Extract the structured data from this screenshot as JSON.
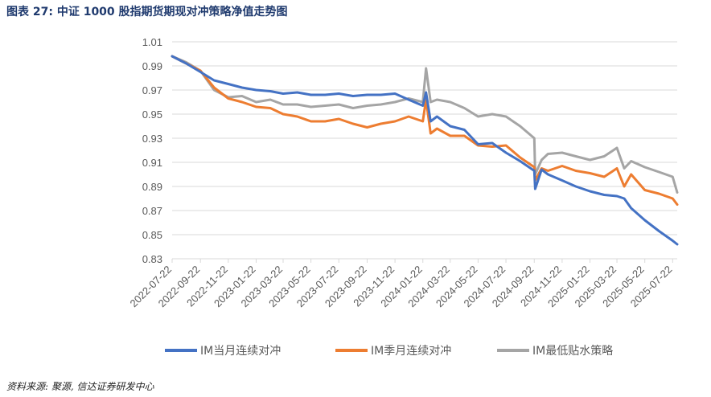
{
  "figure_title": "图表 27:  中证 1000 股指期货期现对冲策略净值走势图",
  "source_note": "资料来源:  聚源,  信达证券研发中心",
  "colors": {
    "IM当月连续对冲": "#4472c4",
    "IM季月连续对冲": "#ed7d31",
    "IM最低贴水策略": "#a5a5a5",
    "grid": "#d9d9d9",
    "title": "#1f3a6e"
  },
  "chart_data": {
    "type": "line",
    "title": "",
    "xlabel": "",
    "ylabel": "",
    "ylim": [
      0.83,
      1.01
    ],
    "yticks": [
      1.01,
      0.99,
      0.97,
      0.95,
      0.93,
      0.91,
      0.89,
      0.87,
      0.85,
      0.83
    ],
    "xticks": [
      "2022-07-22",
      "2022-09-22",
      "2022-11-22",
      "2023-01-22",
      "2023-03-22",
      "2023-05-22",
      "2023-07-22",
      "2023-09-22",
      "2023-11-22",
      "2024-01-22",
      "2024-03-22",
      "2024-05-22",
      "2024-07-22",
      "2024-09-22",
      "2024-11-22",
      "2025-01-22",
      "2025-03-22",
      "2025-05-22",
      "2025-07-22"
    ],
    "grid": "horizontal",
    "legend_position": "bottom",
    "x": [
      "2022-07-22",
      "2022-08-22",
      "2022-09-22",
      "2022-10-22",
      "2022-11-22",
      "2022-12-22",
      "2023-01-22",
      "2023-02-22",
      "2023-03-22",
      "2023-04-22",
      "2023-05-22",
      "2023-06-22",
      "2023-07-22",
      "2023-08-22",
      "2023-09-22",
      "2023-10-22",
      "2023-11-22",
      "2023-12-22",
      "2024-01-22",
      "2024-01-29",
      "2024-02-08",
      "2024-02-22",
      "2024-03-22",
      "2024-04-22",
      "2024-05-22",
      "2024-06-22",
      "2024-07-22",
      "2024-08-22",
      "2024-09-22",
      "2024-09-24",
      "2024-10-08",
      "2024-10-22",
      "2024-11-22",
      "2024-12-22",
      "2025-01-22",
      "2025-02-22",
      "2025-03-22",
      "2025-04-07",
      "2025-04-22",
      "2025-05-22",
      "2025-06-22",
      "2025-07-22",
      "2025-08-01"
    ],
    "series": [
      {
        "name": "IM当月连续对冲",
        "values": [
          0.998,
          0.992,
          0.985,
          0.978,
          0.975,
          0.972,
          0.97,
          0.969,
          0.967,
          0.968,
          0.966,
          0.966,
          0.967,
          0.965,
          0.966,
          0.966,
          0.967,
          0.962,
          0.957,
          0.968,
          0.944,
          0.948,
          0.94,
          0.937,
          0.925,
          0.926,
          0.918,
          0.911,
          0.903,
          0.888,
          0.904,
          0.9,
          0.895,
          0.89,
          0.886,
          0.883,
          0.882,
          0.88,
          0.872,
          0.862,
          0.853,
          0.845,
          0.842
        ]
      },
      {
        "name": "IM季月连续对冲",
        "values": [
          0.998,
          0.992,
          0.986,
          0.972,
          0.963,
          0.96,
          0.956,
          0.955,
          0.95,
          0.948,
          0.944,
          0.944,
          0.946,
          0.942,
          0.939,
          0.942,
          0.944,
          0.948,
          0.944,
          0.962,
          0.934,
          0.938,
          0.932,
          0.932,
          0.924,
          0.923,
          0.924,
          0.914,
          0.906,
          0.895,
          0.905,
          0.903,
          0.907,
          0.903,
          0.901,
          0.898,
          0.905,
          0.89,
          0.9,
          0.887,
          0.884,
          0.88,
          0.875
        ]
      },
      {
        "name": "IM最低贴水策略",
        "values": [
          0.998,
          0.993,
          0.986,
          0.97,
          0.964,
          0.965,
          0.96,
          0.962,
          0.958,
          0.958,
          0.956,
          0.957,
          0.958,
          0.955,
          0.957,
          0.958,
          0.96,
          0.963,
          0.96,
          0.988,
          0.96,
          0.962,
          0.96,
          0.955,
          0.948,
          0.95,
          0.948,
          0.94,
          0.93,
          0.9,
          0.912,
          0.917,
          0.918,
          0.915,
          0.912,
          0.915,
          0.922,
          0.905,
          0.911,
          0.906,
          0.902,
          0.898,
          0.885
        ]
      }
    ]
  }
}
